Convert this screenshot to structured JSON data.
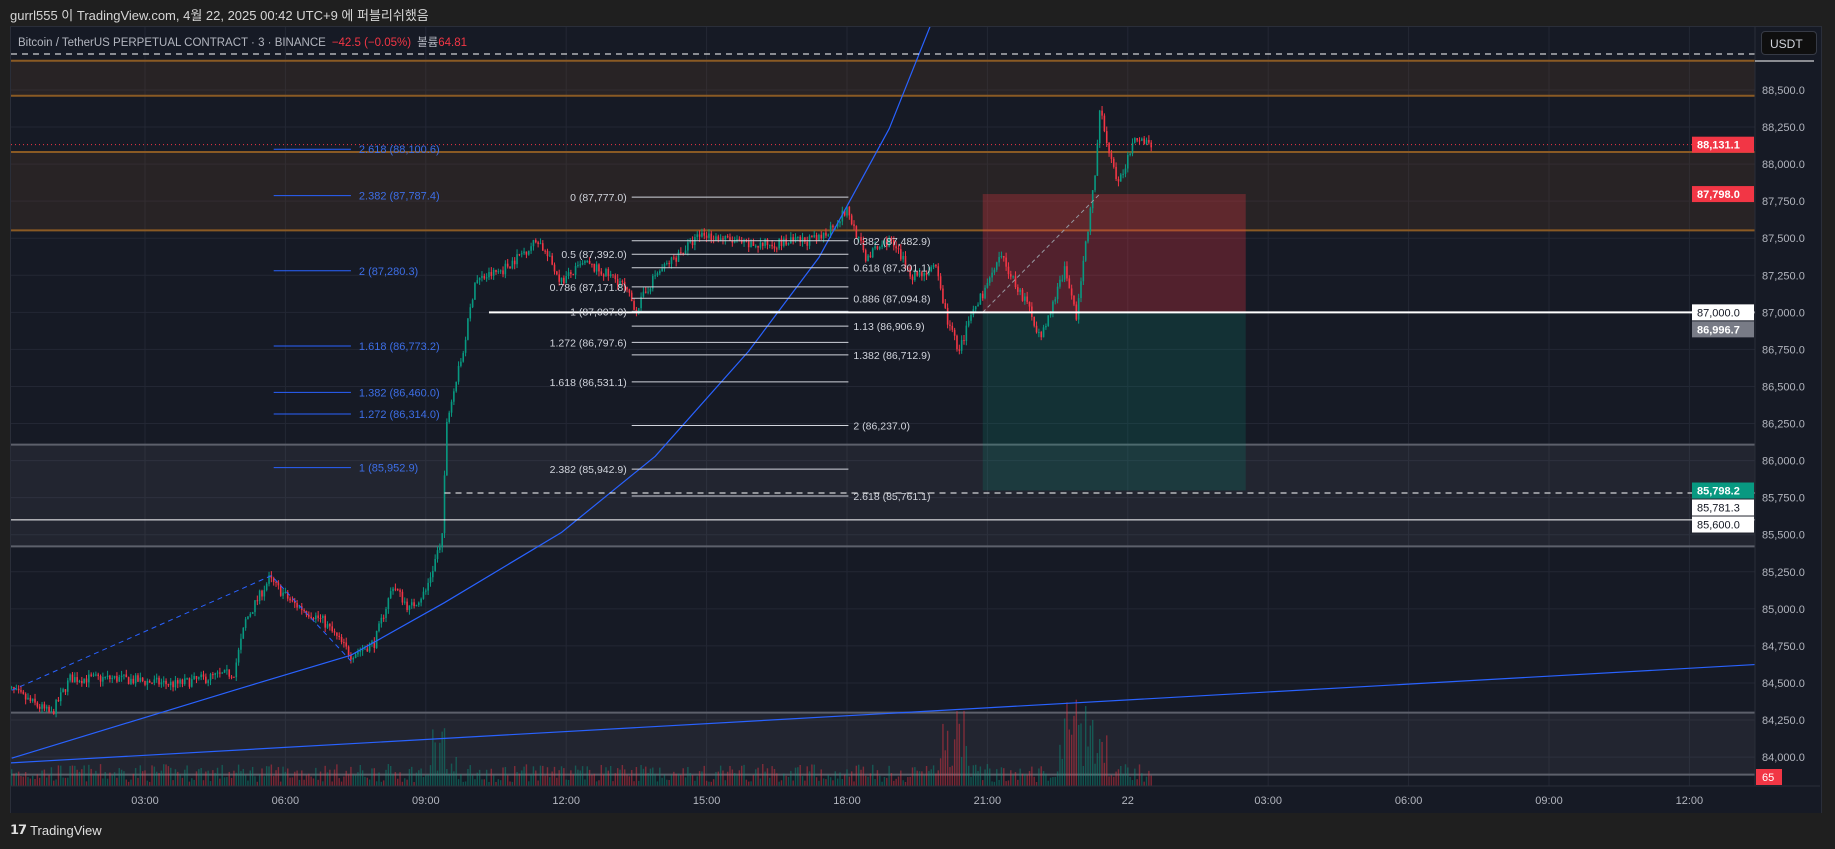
{
  "publisher": "gurrl555 이 TradingView.com, 4월 22, 2025 00:42 UTC+9 에 퍼블리쉬했음",
  "legend": {
    "symbol": "Bitcoin / TetherUS PERPETUAL CONTRACT · 3 · BINANCE",
    "change": "−42.5 (−0.05%)",
    "volume_label": "볼륨",
    "volume_value": "64.81"
  },
  "currency_button": "USDT",
  "footer": {
    "logo": "𝟭𝟳",
    "brand": "TradingView"
  },
  "colors": {
    "up": "#089981",
    "down": "#f23645",
    "fib_blue": "#2962ff",
    "zone": "#b0702a",
    "bg": "#161a25"
  },
  "chart_data": {
    "type": "candlestick",
    "title": "Bitcoin / TetherUS PERPETUAL CONTRACT · 3 · BINANCE",
    "interval_minutes": 3,
    "ylim": [
      83805,
      88930
    ],
    "y_ticks": [
      "84,000.0",
      "84,250.0",
      "84,500.0",
      "84,750.0",
      "85,000.0",
      "85,250.0",
      "85,500.0",
      "85,750.0",
      "86,000.0",
      "86,250.0",
      "86,500.0",
      "86,750.0",
      "87,000.0",
      "87,250.0",
      "87,500.0",
      "87,750.0",
      "88,000.0",
      "88,250.0",
      "88,500.0"
    ],
    "x_ticks": [
      {
        "h": 3,
        "label": "03:00"
      },
      {
        "h": 6,
        "label": "06:00"
      },
      {
        "h": 9,
        "label": "09:00"
      },
      {
        "h": 12,
        "label": "12:00"
      },
      {
        "h": 15,
        "label": "15:00"
      },
      {
        "h": 18,
        "label": "18:00"
      },
      {
        "h": 21,
        "label": "21:00"
      },
      {
        "h": 24,
        "label": "22"
      },
      {
        "h": 27,
        "label": "03:00"
      },
      {
        "h": 30,
        "label": "06:00"
      },
      {
        "h": 33,
        "label": "09:00"
      },
      {
        "h": 36,
        "label": "12:00"
      }
    ],
    "price_path": [
      [
        0.15,
        84450
      ],
      [
        1.0,
        84290
      ],
      [
        1.4,
        84530
      ],
      [
        2.4,
        84530
      ],
      [
        3.65,
        84490
      ],
      [
        4.9,
        84570
      ],
      [
        5.15,
        84920
      ],
      [
        5.65,
        85200
      ],
      [
        6.15,
        85040
      ],
      [
        6.8,
        84920
      ],
      [
        7.4,
        84690
      ],
      [
        7.9,
        84770
      ],
      [
        8.3,
        85160
      ],
      [
        8.65,
        85000
      ],
      [
        9.0,
        85120
      ],
      [
        9.35,
        85480
      ],
      [
        9.45,
        86270
      ],
      [
        9.8,
        86740
      ],
      [
        10.05,
        87210
      ],
      [
        10.65,
        87290
      ],
      [
        11.4,
        87490
      ],
      [
        11.9,
        87210
      ],
      [
        12.4,
        87330
      ],
      [
        13.15,
        87210
      ],
      [
        13.5,
        87020
      ],
      [
        13.9,
        87250
      ],
      [
        14.9,
        87530
      ],
      [
        15.9,
        87450
      ],
      [
        17.4,
        87490
      ],
      [
        18.0,
        87690
      ],
      [
        18.4,
        87370
      ],
      [
        18.9,
        87490
      ],
      [
        19.4,
        87250
      ],
      [
        19.9,
        87290
      ],
      [
        20.15,
        86940
      ],
      [
        20.4,
        86740
      ],
      [
        20.65,
        86980
      ],
      [
        21.3,
        87370
      ],
      [
        21.9,
        87020
      ],
      [
        22.15,
        86820
      ],
      [
        22.65,
        87290
      ],
      [
        22.9,
        86980
      ],
      [
        23.3,
        87920
      ],
      [
        23.4,
        88360
      ],
      [
        23.8,
        87850
      ],
      [
        24.15,
        88200
      ],
      [
        24.55,
        88131.1
      ]
    ],
    "zones": [
      {
        "type": "resistance",
        "top": 88697,
        "bottom": 88461
      },
      {
        "type": "resistance",
        "top": 88082,
        "bottom": 87553
      },
      {
        "type": "support",
        "top": 86108,
        "bottom": 85421
      },
      {
        "type": "support",
        "top": 84300,
        "bottom": 83882
      }
    ],
    "horizontal_lines": [
      {
        "price": 87000,
        "style": "solid",
        "from_h": 10.35
      },
      {
        "price": 85600,
        "style": "solid",
        "from_h": 0
      },
      {
        "price": 85781.3,
        "style": "dashed",
        "from_h": 9.4
      },
      {
        "price": 88743,
        "style": "dashed",
        "from_h": 0
      }
    ],
    "fib_extension_blue": {
      "from_h": 5.75,
      "to_h": 7.4,
      "levels": [
        {
          "label": "2.618 (88,100.6)",
          "price": 88100.6
        },
        {
          "label": "2.382 (87,787.4)",
          "price": 87787.4
        },
        {
          "label": "2 (87,280.3)",
          "price": 87280.3
        },
        {
          "label": "1.618 (86,773.2)",
          "price": 86773.2
        },
        {
          "label": "1.382 (86,460.0)",
          "price": 86460.0
        },
        {
          "label": "1.272 (86,314.0)",
          "price": 86314.0
        },
        {
          "label": "1 (85,952.9)",
          "price": 85952.9
        }
      ]
    },
    "fib_retracement": {
      "from_h": 13.4,
      "to_h": 18.03,
      "levels": [
        {
          "label": "0 (87,777.0)",
          "price": 87777.0
        },
        {
          "label": "0.382 (87,482.9)",
          "price": 87482.9
        },
        {
          "label": "0.5 (87,392.0)",
          "price": 87392.0
        },
        {
          "label": "0.618 (87,301.1)",
          "price": 87301.1
        },
        {
          "label": "0.786 (87,171.8)",
          "price": 87171.8
        },
        {
          "label": "0.886 (87,094.8)",
          "price": 87094.8
        },
        {
          "label": "1 (87,007.0)",
          "price": 87007.0
        },
        {
          "label": "1.13 (86,906.9)",
          "price": 86906.9
        },
        {
          "label": "1.272 (86,797.6)",
          "price": 86797.6
        },
        {
          "label": "1.382 (86,712.9)",
          "price": 86712.9
        },
        {
          "label": "1.618 (86,531.1)",
          "price": 86531.1
        },
        {
          "label": "2 (86,237.0)",
          "price": 86237.0
        },
        {
          "label": "2.382 (85,942.9)",
          "price": 85942.9
        },
        {
          "label": "2.618 (85,761.1)",
          "price": 85761.1
        }
      ]
    },
    "short_position": {
      "from_h": 20.9,
      "to_h": 26.52,
      "entry": 87000,
      "stop": 87798.0,
      "target": 85798.2
    },
    "price_tags": [
      {
        "label": "88,131.1",
        "price": 88131.1,
        "bg": "#f23645",
        "fg": "#ffffff"
      },
      {
        "label": "87,798.0",
        "price": 87798.0,
        "bg": "#f23645",
        "fg": "#ffffff"
      },
      {
        "label": "87,000.0",
        "price": 87000,
        "bg": "#ffffff",
        "fg": "#131722"
      },
      {
        "label": "86,996.7",
        "price": 86996.7,
        "bg": "#787b86",
        "fg": "#ffffff"
      },
      {
        "label": "85,798.2",
        "price": 85798.2,
        "bg": "#089981",
        "fg": "#ffffff"
      },
      {
        "label": "85,781.3",
        "price": 85781.3,
        "bg": "#ffffff",
        "fg": "#131722"
      },
      {
        "label": "85,600.0",
        "price": 85600.0,
        "bg": "#ffffff",
        "fg": "#131722"
      }
    ],
    "volume_tag": {
      "label": "65",
      "bg": "#f23645"
    }
  }
}
